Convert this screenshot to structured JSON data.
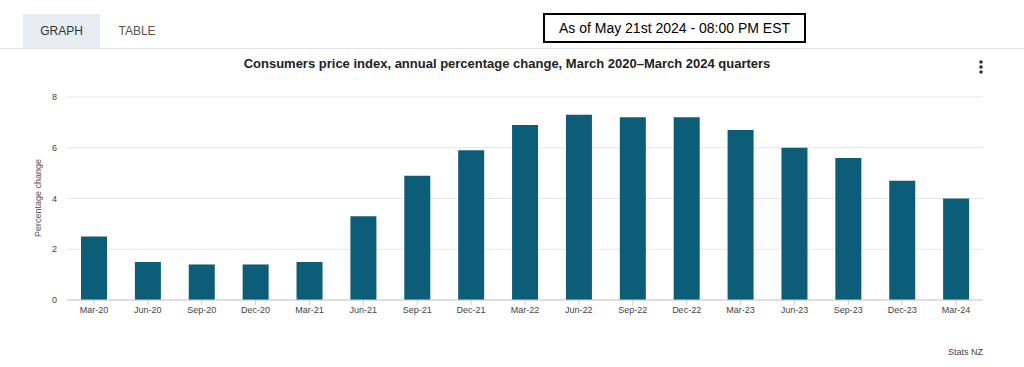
{
  "header": {
    "tabs": [
      "GRAPH",
      "TABLE"
    ],
    "note": "As of May 21st 2024 - 08:00 PM EST"
  },
  "chart_data": {
    "type": "bar",
    "title": "Consumers price index, annual percentage change, March 2020–March 2024 quarters",
    "ylabel": "Percentage change",
    "categories": [
      "Mar-20",
      "Jun-20",
      "Sep-20",
      "Dec-20",
      "Mar-21",
      "Jun-21",
      "Sep-21",
      "Dec-21",
      "Mar-22",
      "Jun-22",
      "Sep-22",
      "Dec-22",
      "Mar-23",
      "Jun-23",
      "Sep-23",
      "Dec-23",
      "Mar-24"
    ],
    "values": [
      2.5,
      1.5,
      1.4,
      1.4,
      1.5,
      3.3,
      4.9,
      5.9,
      6.9,
      7.3,
      7.2,
      7.2,
      6.7,
      6.0,
      5.6,
      4.7,
      4.0
    ],
    "color": "#0b5d78",
    "ylim": [
      0,
      8
    ],
    "yticks": [
      0,
      2,
      4,
      6,
      8
    ],
    "grid": true
  },
  "footer": {
    "source": "Stats NZ"
  }
}
